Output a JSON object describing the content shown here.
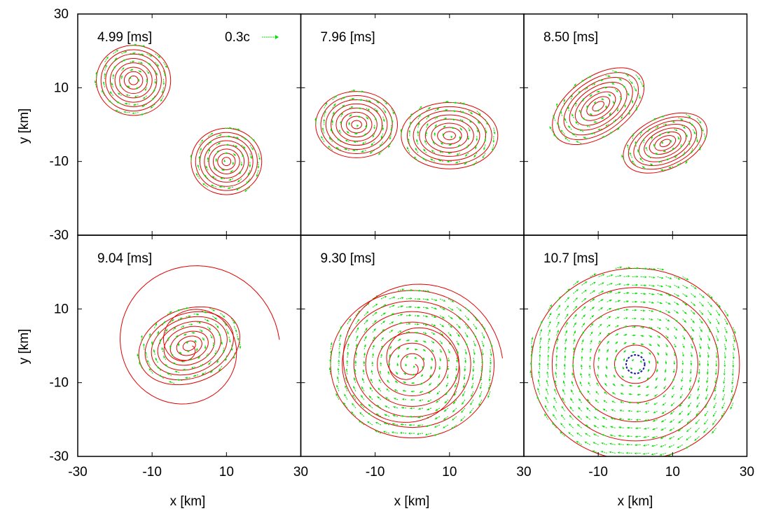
{
  "colors": {
    "contour": "#e00000",
    "velocity_arrow": "#00e000",
    "horizon": "#1a1aa0",
    "frame": "#000000"
  },
  "axes": {
    "xlabel": "x [km]",
    "ylabel": "y [km]",
    "xlim": [
      -30,
      30
    ],
    "ylim": [
      -30,
      30
    ],
    "x_ticks": [
      "-30",
      "-10",
      "10",
      "30"
    ],
    "y_ticks": [
      "30",
      "10",
      "-10",
      "-30"
    ]
  },
  "chart_data": {
    "type": "contour",
    "layout": "2x3 grid of panels",
    "legend": {
      "label": "0.3c",
      "meaning": "arrow length for velocity 0.3c",
      "panel": "first panel, top-right"
    },
    "panels": [
      {
        "time_label": "4.99 [ms]",
        "bodies": [
          {
            "cx": -15,
            "cy": 12,
            "rx": 10,
            "ry": 9.5,
            "rings": 8,
            "spin": 1
          },
          {
            "cx": 10,
            "cy": -10,
            "rx": 9.5,
            "ry": 9,
            "rings": 8,
            "spin": 1
          }
        ],
        "horizon": null
      },
      {
        "time_label": "7.96 [ms]",
        "bodies": [
          {
            "cx": -15,
            "cy": 0,
            "rx": 11,
            "ry": 9,
            "rings": 8,
            "spin": 1
          },
          {
            "cx": 10,
            "cy": -3,
            "rx": 13,
            "ry": 9,
            "rings": 8,
            "spin": 1
          }
        ],
        "horizon": null
      },
      {
        "time_label": "8.50 [ms]",
        "bodies": [
          {
            "cx": -10,
            "cy": 5,
            "rx": 14,
            "ry": 8,
            "rings": 8,
            "spin": 1,
            "angle": -35
          },
          {
            "cx": 8,
            "cy": -5,
            "rx": 12,
            "ry": 7,
            "rings": 8,
            "spin": 1,
            "angle": -25
          }
        ],
        "horizon": null
      },
      {
        "time_label": "9.04 [ms]",
        "bodies": [
          {
            "cx": 0,
            "cy": 0,
            "rx": 14,
            "ry": 10,
            "rings": 8,
            "spin": 1,
            "angle": -20
          }
        ],
        "spiral": true,
        "horizon": null
      },
      {
        "time_label": "9.30 [ms]",
        "bodies": [
          {
            "cx": 0,
            "cy": -5,
            "rx": 22,
            "ry": 20,
            "rings": 7,
            "spin": 1
          }
        ],
        "spiral": true,
        "horizon": null
      },
      {
        "time_label": "10.7 [ms]",
        "bodies": [
          {
            "cx": 0,
            "cy": -5,
            "rx": 28,
            "ry": 26,
            "rings": 5,
            "spin": 1
          }
        ],
        "spiral": false,
        "horizon": {
          "cx": 0,
          "cy": -5,
          "r": 2.5
        }
      }
    ]
  }
}
